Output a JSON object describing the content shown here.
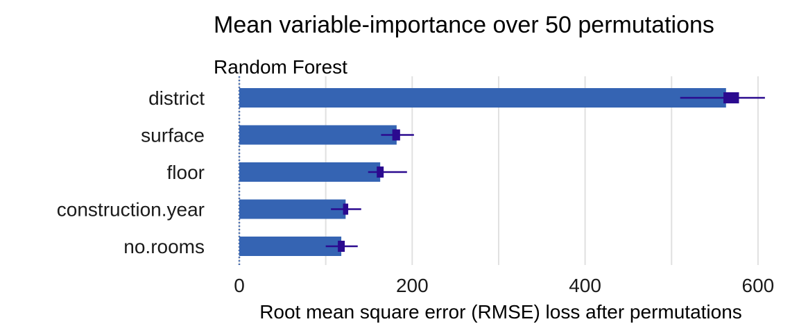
{
  "chart_data": {
    "type": "bar",
    "title": "Mean variable-importance over 50 permutations",
    "subtitle": "Random Forest",
    "xlabel": "Root mean square error (RMSE) loss after permutations",
    "ylabel": "",
    "orientation": "horizontal",
    "xlim": [
      0,
      620
    ],
    "xticks": [
      0,
      200,
      400,
      600
    ],
    "tick_labels": [
      "0",
      "200",
      "400",
      "600"
    ],
    "grid": true,
    "baseline": 0,
    "categories": [
      "district",
      "surface",
      "floor",
      "construction.year",
      "no.rooms"
    ],
    "values": [
      563,
      182,
      163,
      123,
      118
    ],
    "boxes": [
      {
        "lower": 560,
        "upper": 578
      },
      {
        "lower": 177,
        "upper": 186
      },
      {
        "lower": 159,
        "upper": 167
      },
      {
        "lower": 120,
        "upper": 126
      },
      {
        "lower": 114,
        "upper": 122
      }
    ],
    "whiskers": [
      {
        "lower": 510,
        "upper": 608
      },
      {
        "lower": 164,
        "upper": 202
      },
      {
        "lower": 149,
        "upper": 194
      },
      {
        "lower": 106,
        "upper": 141
      },
      {
        "lower": 100,
        "upper": 137
      }
    ],
    "colors": {
      "bar": "#3564b3",
      "interval": "#2b0a8f",
      "grid": "#e0e0e0",
      "baseline": "#4a6fb0"
    }
  }
}
